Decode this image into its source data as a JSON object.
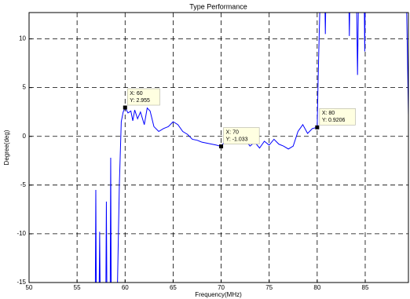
{
  "chart_data": {
    "type": "line",
    "title": "Type Performance",
    "x_label": "Frequency(MHz)",
    "y_label": "Degree(deg)",
    "xlim": [
      50,
      89.5
    ],
    "ylim": [
      -15,
      12.7
    ],
    "xticks": [
      50,
      55,
      60,
      65,
      70,
      75,
      80,
      85
    ],
    "yticks": [
      -15,
      -10,
      -5,
      0,
      5,
      10
    ],
    "grid": true,
    "series": [
      {
        "color": "#0000ff",
        "x": [
          56.9,
          56.95,
          57.0,
          57.3,
          57.35,
          57.4,
          58.0,
          58.05,
          58.1,
          58.45,
          58.5,
          58.55,
          59.2,
          59.4,
          59.6,
          59.8,
          60,
          60.3,
          60.6,
          60.8,
          61,
          61.3,
          61.6,
          62,
          62.3,
          62.6,
          63,
          63.5,
          64,
          64.5,
          65,
          65.5,
          66,
          66.5,
          67,
          67.5,
          68,
          68.5,
          69,
          69.5,
          70,
          70.5,
          71,
          71.5,
          72,
          72.5,
          73,
          73.5,
          74,
          74.5,
          75,
          75.5,
          76,
          76.5,
          77,
          77.5,
          78,
          78.5,
          79,
          79.5,
          80,
          80.1,
          80.3,
          80.8,
          80.85,
          80.9,
          83.3,
          83.35,
          83.4,
          84.1,
          84.2,
          84.3,
          84.9,
          84.95,
          85,
          89.3,
          89.5
        ],
        "values": [
          -15.5,
          -5.5,
          -15.5,
          -15.5,
          -9.8,
          -15.5,
          -15.5,
          -6.7,
          -15.5,
          -15.5,
          -2.2,
          -15.5,
          -15.5,
          -5,
          1.5,
          2.5,
          2.955,
          2.4,
          2.6,
          1.6,
          2.7,
          1.8,
          2.5,
          1.2,
          2.9,
          2.6,
          1.0,
          0.5,
          0.8,
          1.0,
          1.5,
          1.2,
          0.5,
          0.2,
          -0.3,
          -0.4,
          -0.6,
          -0.7,
          -0.8,
          -0.9,
          -1.033,
          -0.4,
          -0.1,
          -0.5,
          -0.7,
          -0.3,
          -1.0,
          -0.6,
          -1.2,
          -0.5,
          -0.9,
          -0.3,
          -0.8,
          -1.0,
          -1.3,
          -1.0,
          0.5,
          1.2,
          0.3,
          0.8,
          0.9206,
          6,
          14,
          14,
          10.5,
          14,
          14,
          10.3,
          14,
          14,
          6.3,
          14,
          14,
          8.7,
          14,
          14,
          2.2
        ]
      }
    ],
    "annotations": [
      {
        "x": 60,
        "y": 2.955,
        "label_x": "X: 60",
        "label_y": "Y: 2.955"
      },
      {
        "x": 70,
        "y": -1.033,
        "label_x": "X: 70",
        "label_y": "Y: -1.033"
      },
      {
        "x": 80,
        "y": 0.9206,
        "label_x": "X: 80",
        "label_y": "Y: 0.9206"
      }
    ]
  }
}
